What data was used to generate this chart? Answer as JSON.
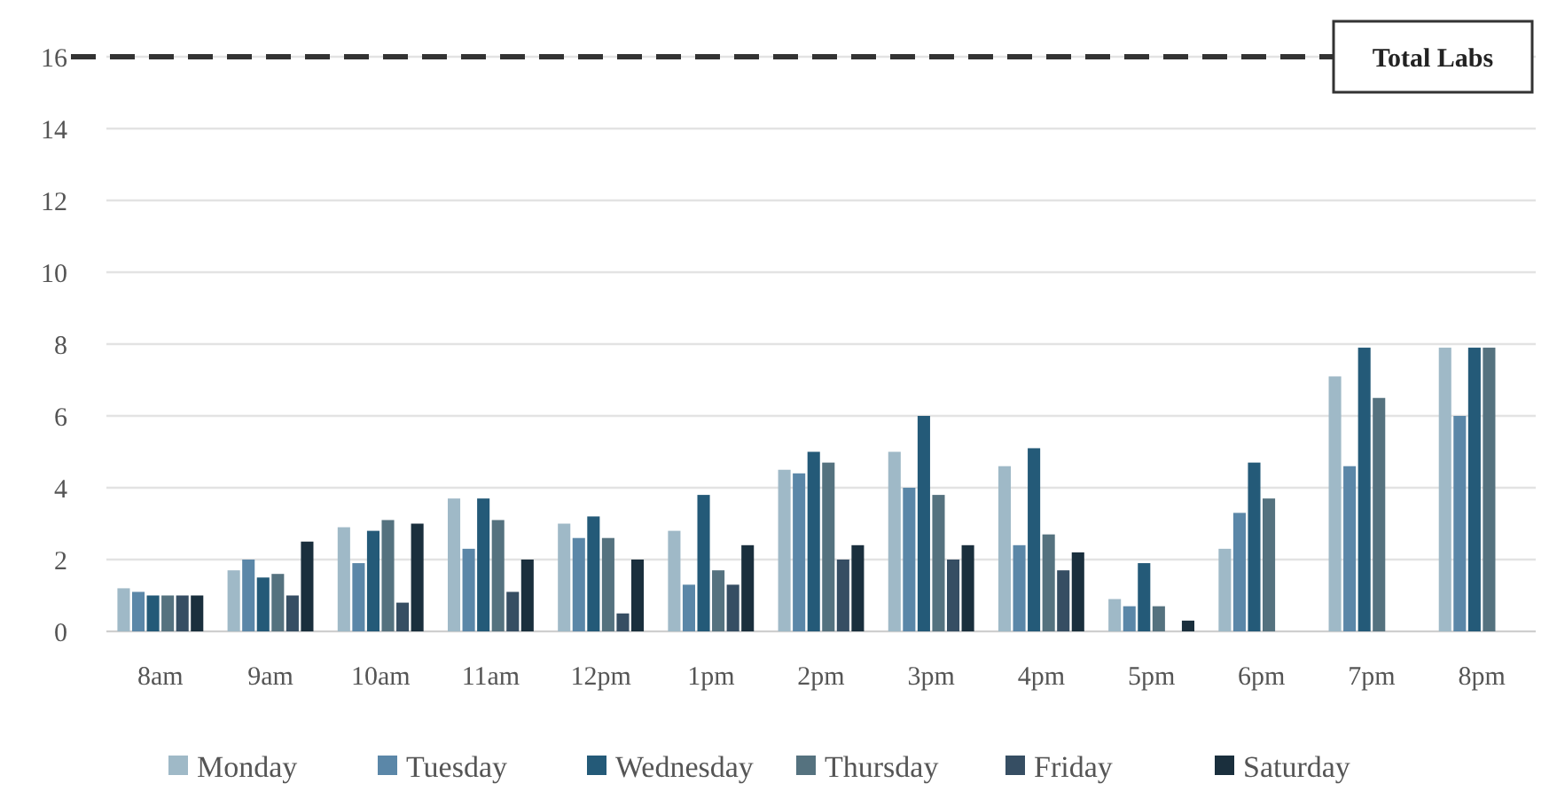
{
  "chart_data": {
    "type": "bar",
    "categories": [
      "8am",
      "9am",
      "10am",
      "11am",
      "12pm",
      "1pm",
      "2pm",
      "3pm",
      "4pm",
      "5pm",
      "6pm",
      "7pm",
      "8pm"
    ],
    "series": [
      {
        "name": "Monday",
        "color": "#9fb9c7",
        "values": [
          1.2,
          1.7,
          2.9,
          3.7,
          3.0,
          2.8,
          4.5,
          5.0,
          4.6,
          0.9,
          2.3,
          7.1,
          7.9
        ]
      },
      {
        "name": "Tuesday",
        "color": "#5b87a8",
        "values": [
          1.1,
          2.0,
          1.9,
          2.3,
          2.6,
          1.3,
          4.4,
          4.0,
          2.4,
          0.7,
          3.3,
          4.6,
          6.0
        ]
      },
      {
        "name": "Wednesday",
        "color": "#245a78",
        "values": [
          1.0,
          1.5,
          2.8,
          3.7,
          3.2,
          3.8,
          5.0,
          6.0,
          5.1,
          1.9,
          4.7,
          7.9,
          7.9
        ]
      },
      {
        "name": "Thursday",
        "color": "#55727f",
        "values": [
          1.0,
          1.6,
          3.1,
          3.1,
          2.6,
          1.7,
          4.7,
          3.8,
          2.7,
          0.7,
          3.7,
          6.5,
          7.9
        ]
      },
      {
        "name": "Friday",
        "color": "#364e63",
        "values": [
          1.0,
          1.0,
          0.8,
          1.1,
          0.5,
          1.3,
          2.0,
          2.0,
          1.7,
          null,
          null,
          null,
          null
        ]
      },
      {
        "name": "Saturday",
        "color": "#1a2f3d",
        "values": [
          1.0,
          2.5,
          3.0,
          2.0,
          2.0,
          2.4,
          2.4,
          2.4,
          2.2,
          0.3,
          null,
          null,
          null
        ]
      }
    ],
    "ylim": [
      0,
      16
    ],
    "yticks": [
      0,
      2,
      4,
      6,
      8,
      10,
      12,
      14,
      16
    ],
    "grid": "y",
    "legend": "bottom",
    "ref_lines": [
      {
        "axis": "y",
        "value": 16,
        "label": "Total Labs",
        "color": "#333333",
        "line_style": "dashed"
      }
    ]
  }
}
